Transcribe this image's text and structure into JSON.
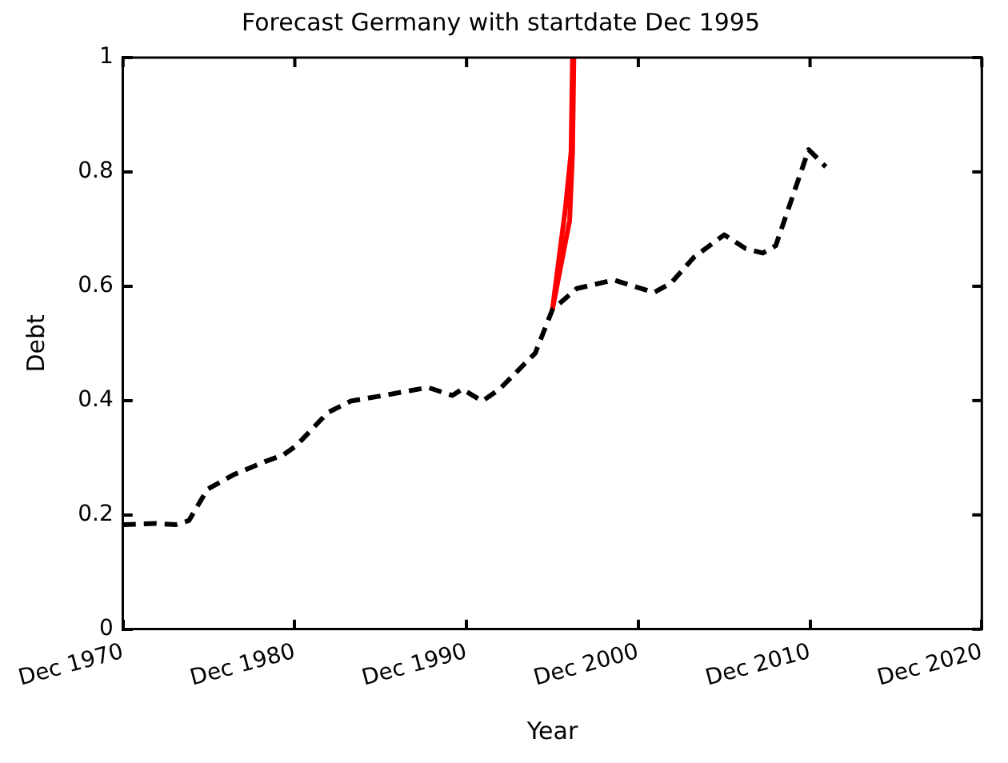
{
  "chart_data": {
    "type": "line",
    "title": "Forecast Germany with startdate Dec 1995",
    "xlabel": "Year",
    "ylabel": "Debt",
    "xlim": [
      "1970-12",
      "2020-12"
    ],
    "xticks": [
      {
        "value": "1970-12",
        "label": "Dec 1970"
      },
      {
        "value": "1980-12",
        "label": "Dec 1980"
      },
      {
        "value": "1990-12",
        "label": "Dec 1990"
      },
      {
        "value": "2000-12",
        "label": "Dec 2000"
      },
      {
        "value": "2010-12",
        "label": "Dec 2010"
      },
      {
        "value": "2020-12",
        "label": "Dec 2020"
      }
    ],
    "ylim": [
      0,
      1
    ],
    "yticks": [
      0,
      0.2,
      0.4,
      0.6,
      0.8,
      1
    ],
    "grid": false,
    "legend": false,
    "marker": "none",
    "series": [
      {
        "color": "#000000",
        "line_style": "dashed",
        "x": [
          "1970-12",
          "1972-11",
          "1974-01",
          "1974-10",
          "1975-11",
          "1977-05",
          "1979-03",
          "1980-04",
          "1981-01",
          "1982-11",
          "1984-03",
          "1986-02",
          "1988-09",
          "1990-02",
          "1990-09",
          "1991-11",
          "1992-11",
          "1994-12",
          "1995-12",
          "1997-05",
          "1999-07",
          "2001-11",
          "2002-11",
          "2004-03",
          "2005-12",
          "2007-03",
          "2008-03",
          "2008-12",
          "2010-11",
          "2011-11"
        ],
        "values": [
          0.183,
          0.185,
          0.183,
          0.19,
          0.245,
          0.27,
          0.293,
          0.305,
          0.321,
          0.379,
          0.399,
          0.409,
          0.423,
          0.409,
          0.42,
          0.399,
          0.42,
          0.483,
          0.559,
          0.596,
          0.611,
          0.589,
          0.606,
          0.651,
          0.69,
          0.666,
          0.658,
          0.671,
          0.839,
          0.809
        ]
      },
      {
        "color": "#ff0000",
        "line_style": "solid",
        "x": [
          "1995-12",
          "1996-12",
          "1997-02",
          "1997-03"
        ],
        "values": [
          0.559,
          0.715,
          0.834,
          1.0
        ]
      },
      {
        "color": "#ff0000",
        "line_style": "solid",
        "x": [
          "1995-12",
          "1996-09",
          "1997-01",
          "1997-02"
        ],
        "values": [
          0.559,
          0.735,
          0.834,
          1.0
        ]
      }
    ]
  }
}
